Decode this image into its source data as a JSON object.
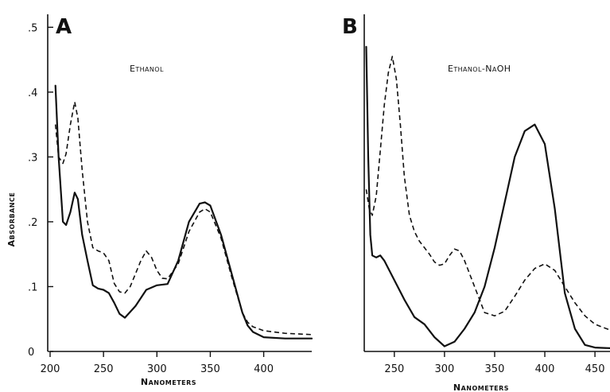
{
  "chart_data": [
    {
      "type": "line",
      "panel_label": "A",
      "annotation": "Ethanol",
      "xlabel": "Nanometers",
      "ylabel": "Absorbance",
      "xlim": [
        200,
        445
      ],
      "ylim": [
        0,
        0.52
      ],
      "x_ticks": [
        200,
        250,
        300,
        350,
        400
      ],
      "y_ticks": [
        0,
        0.1,
        0.2,
        0.3,
        0.4,
        0.5
      ],
      "y_tick_labels": [
        "0",
        ".1",
        ".2",
        ".3",
        ".4",
        ".5"
      ],
      "series": [
        {
          "style": "solid",
          "x": [
            205,
            208,
            212,
            215,
            219,
            223,
            226,
            230,
            235,
            240,
            245,
            250,
            255,
            260,
            265,
            270,
            280,
            290,
            300,
            310,
            320,
            330,
            340,
            345,
            350,
            360,
            370,
            380,
            385,
            390,
            400,
            420,
            445
          ],
          "y": [
            0.41,
            0.3,
            0.2,
            0.195,
            0.215,
            0.245,
            0.235,
            0.18,
            0.14,
            0.102,
            0.097,
            0.095,
            0.09,
            0.075,
            0.058,
            0.052,
            0.07,
            0.095,
            0.102,
            0.104,
            0.14,
            0.2,
            0.228,
            0.23,
            0.225,
            0.18,
            0.12,
            0.06,
            0.04,
            0.03,
            0.022,
            0.02,
            0.02
          ]
        },
        {
          "style": "dashed",
          "x": [
            205,
            208,
            212,
            215,
            219,
            223,
            226,
            230,
            235,
            240,
            245,
            250,
            255,
            260,
            265,
            270,
            275,
            280,
            285,
            290,
            295,
            300,
            305,
            310,
            320,
            330,
            340,
            345,
            350,
            360,
            370,
            380,
            385,
            390,
            400,
            420,
            445
          ],
          "y": [
            0.35,
            0.3,
            0.29,
            0.305,
            0.35,
            0.385,
            0.36,
            0.28,
            0.2,
            0.16,
            0.155,
            0.152,
            0.14,
            0.105,
            0.092,
            0.09,
            0.1,
            0.12,
            0.14,
            0.155,
            0.145,
            0.125,
            0.113,
            0.112,
            0.135,
            0.185,
            0.215,
            0.22,
            0.215,
            0.175,
            0.115,
            0.06,
            0.045,
            0.038,
            0.032,
            0.028,
            0.026
          ]
        }
      ]
    },
    {
      "type": "line",
      "panel_label": "B",
      "annotation": "Ethanol-NaOH",
      "xlabel": "Nanometers",
      "ylabel": "",
      "xlim": [
        220,
        465
      ],
      "ylim": [
        0,
        0.52
      ],
      "x_ticks": [
        250,
        300,
        350,
        400,
        450
      ],
      "y_ticks": [],
      "series": [
        {
          "style": "solid",
          "x": [
            222,
            224,
            226,
            228,
            232,
            236,
            240,
            250,
            260,
            270,
            280,
            290,
            300,
            310,
            320,
            330,
            340,
            350,
            360,
            370,
            380,
            390,
            400,
            410,
            420,
            430,
            440,
            450,
            465
          ],
          "y": [
            0.47,
            0.3,
            0.18,
            0.148,
            0.145,
            0.148,
            0.14,
            0.11,
            0.08,
            0.053,
            0.042,
            0.022,
            0.008,
            0.015,
            0.035,
            0.06,
            0.1,
            0.16,
            0.23,
            0.3,
            0.34,
            0.35,
            0.32,
            0.22,
            0.09,
            0.035,
            0.01,
            0.006,
            0.005
          ]
        },
        {
          "style": "dashed",
          "x": [
            222,
            225,
            228,
            232,
            236,
            240,
            244,
            248,
            252,
            256,
            260,
            265,
            270,
            275,
            280,
            285,
            290,
            295,
            300,
            305,
            310,
            315,
            320,
            330,
            340,
            350,
            360,
            370,
            380,
            390,
            400,
            410,
            420,
            430,
            440,
            450,
            465
          ],
          "y": [
            0.25,
            0.22,
            0.21,
            0.24,
            0.31,
            0.38,
            0.43,
            0.455,
            0.42,
            0.35,
            0.27,
            0.21,
            0.185,
            0.17,
            0.16,
            0.15,
            0.138,
            0.133,
            0.135,
            0.148,
            0.158,
            0.155,
            0.14,
            0.1,
            0.06,
            0.055,
            0.062,
            0.085,
            0.11,
            0.128,
            0.135,
            0.125,
            0.1,
            0.075,
            0.055,
            0.042,
            0.033
          ]
        }
      ]
    }
  ]
}
